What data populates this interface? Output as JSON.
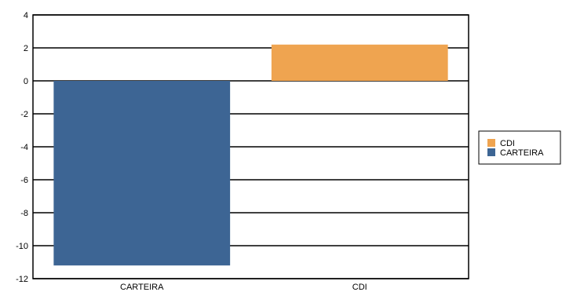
{
  "chart_data": {
    "type": "bar",
    "categories": [
      "CARTEIRA",
      "CDI"
    ],
    "series": [
      {
        "name": "CARTEIRA",
        "category": "CARTEIRA",
        "value": -11.2,
        "color": "#3d6594"
      },
      {
        "name": "CDI",
        "category": "CDI",
        "value": 2.2,
        "color": "#efa450"
      }
    ],
    "ylim": [
      -12,
      4
    ],
    "yticks": [
      "4",
      "2",
      "0",
      "-2",
      "-4",
      "-6",
      "-8",
      "-10",
      "-12"
    ],
    "ytick_values": [
      4,
      2,
      0,
      -2,
      -4,
      -6,
      -8,
      -10,
      -12
    ],
    "grid": true,
    "legend": {
      "placement": "right",
      "entries": [
        {
          "label": "CDI",
          "color": "#efa450"
        },
        {
          "label": "CARTEIRA",
          "color": "#3d6594"
        }
      ]
    }
  }
}
